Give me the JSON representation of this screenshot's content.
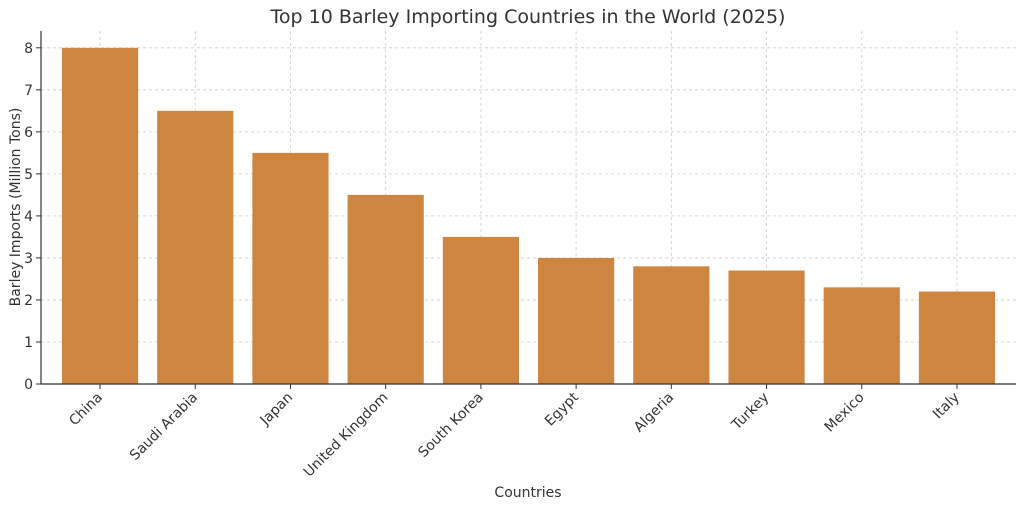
{
  "chart_data": {
    "type": "bar",
    "title": "Top 10 Barley Importing Countries in the World (2025)",
    "xlabel": "Countries",
    "ylabel": "Barley Imports (Million Tons)",
    "categories": [
      "China",
      "Saudi Arabia",
      "Japan",
      "United Kingdom",
      "South Korea",
      "Egypt",
      "Algeria",
      "Turkey",
      "Mexico",
      "Italy"
    ],
    "values": [
      8,
      6.5,
      5.5,
      4.5,
      3.5,
      3,
      2.8,
      2.7,
      2.3,
      2.2
    ],
    "ylim": [
      0,
      8.4
    ],
    "yticks": [
      0,
      1,
      2,
      3,
      4,
      5,
      6,
      7,
      8
    ],
    "grid": true,
    "bar_color": "#cd853f"
  }
}
